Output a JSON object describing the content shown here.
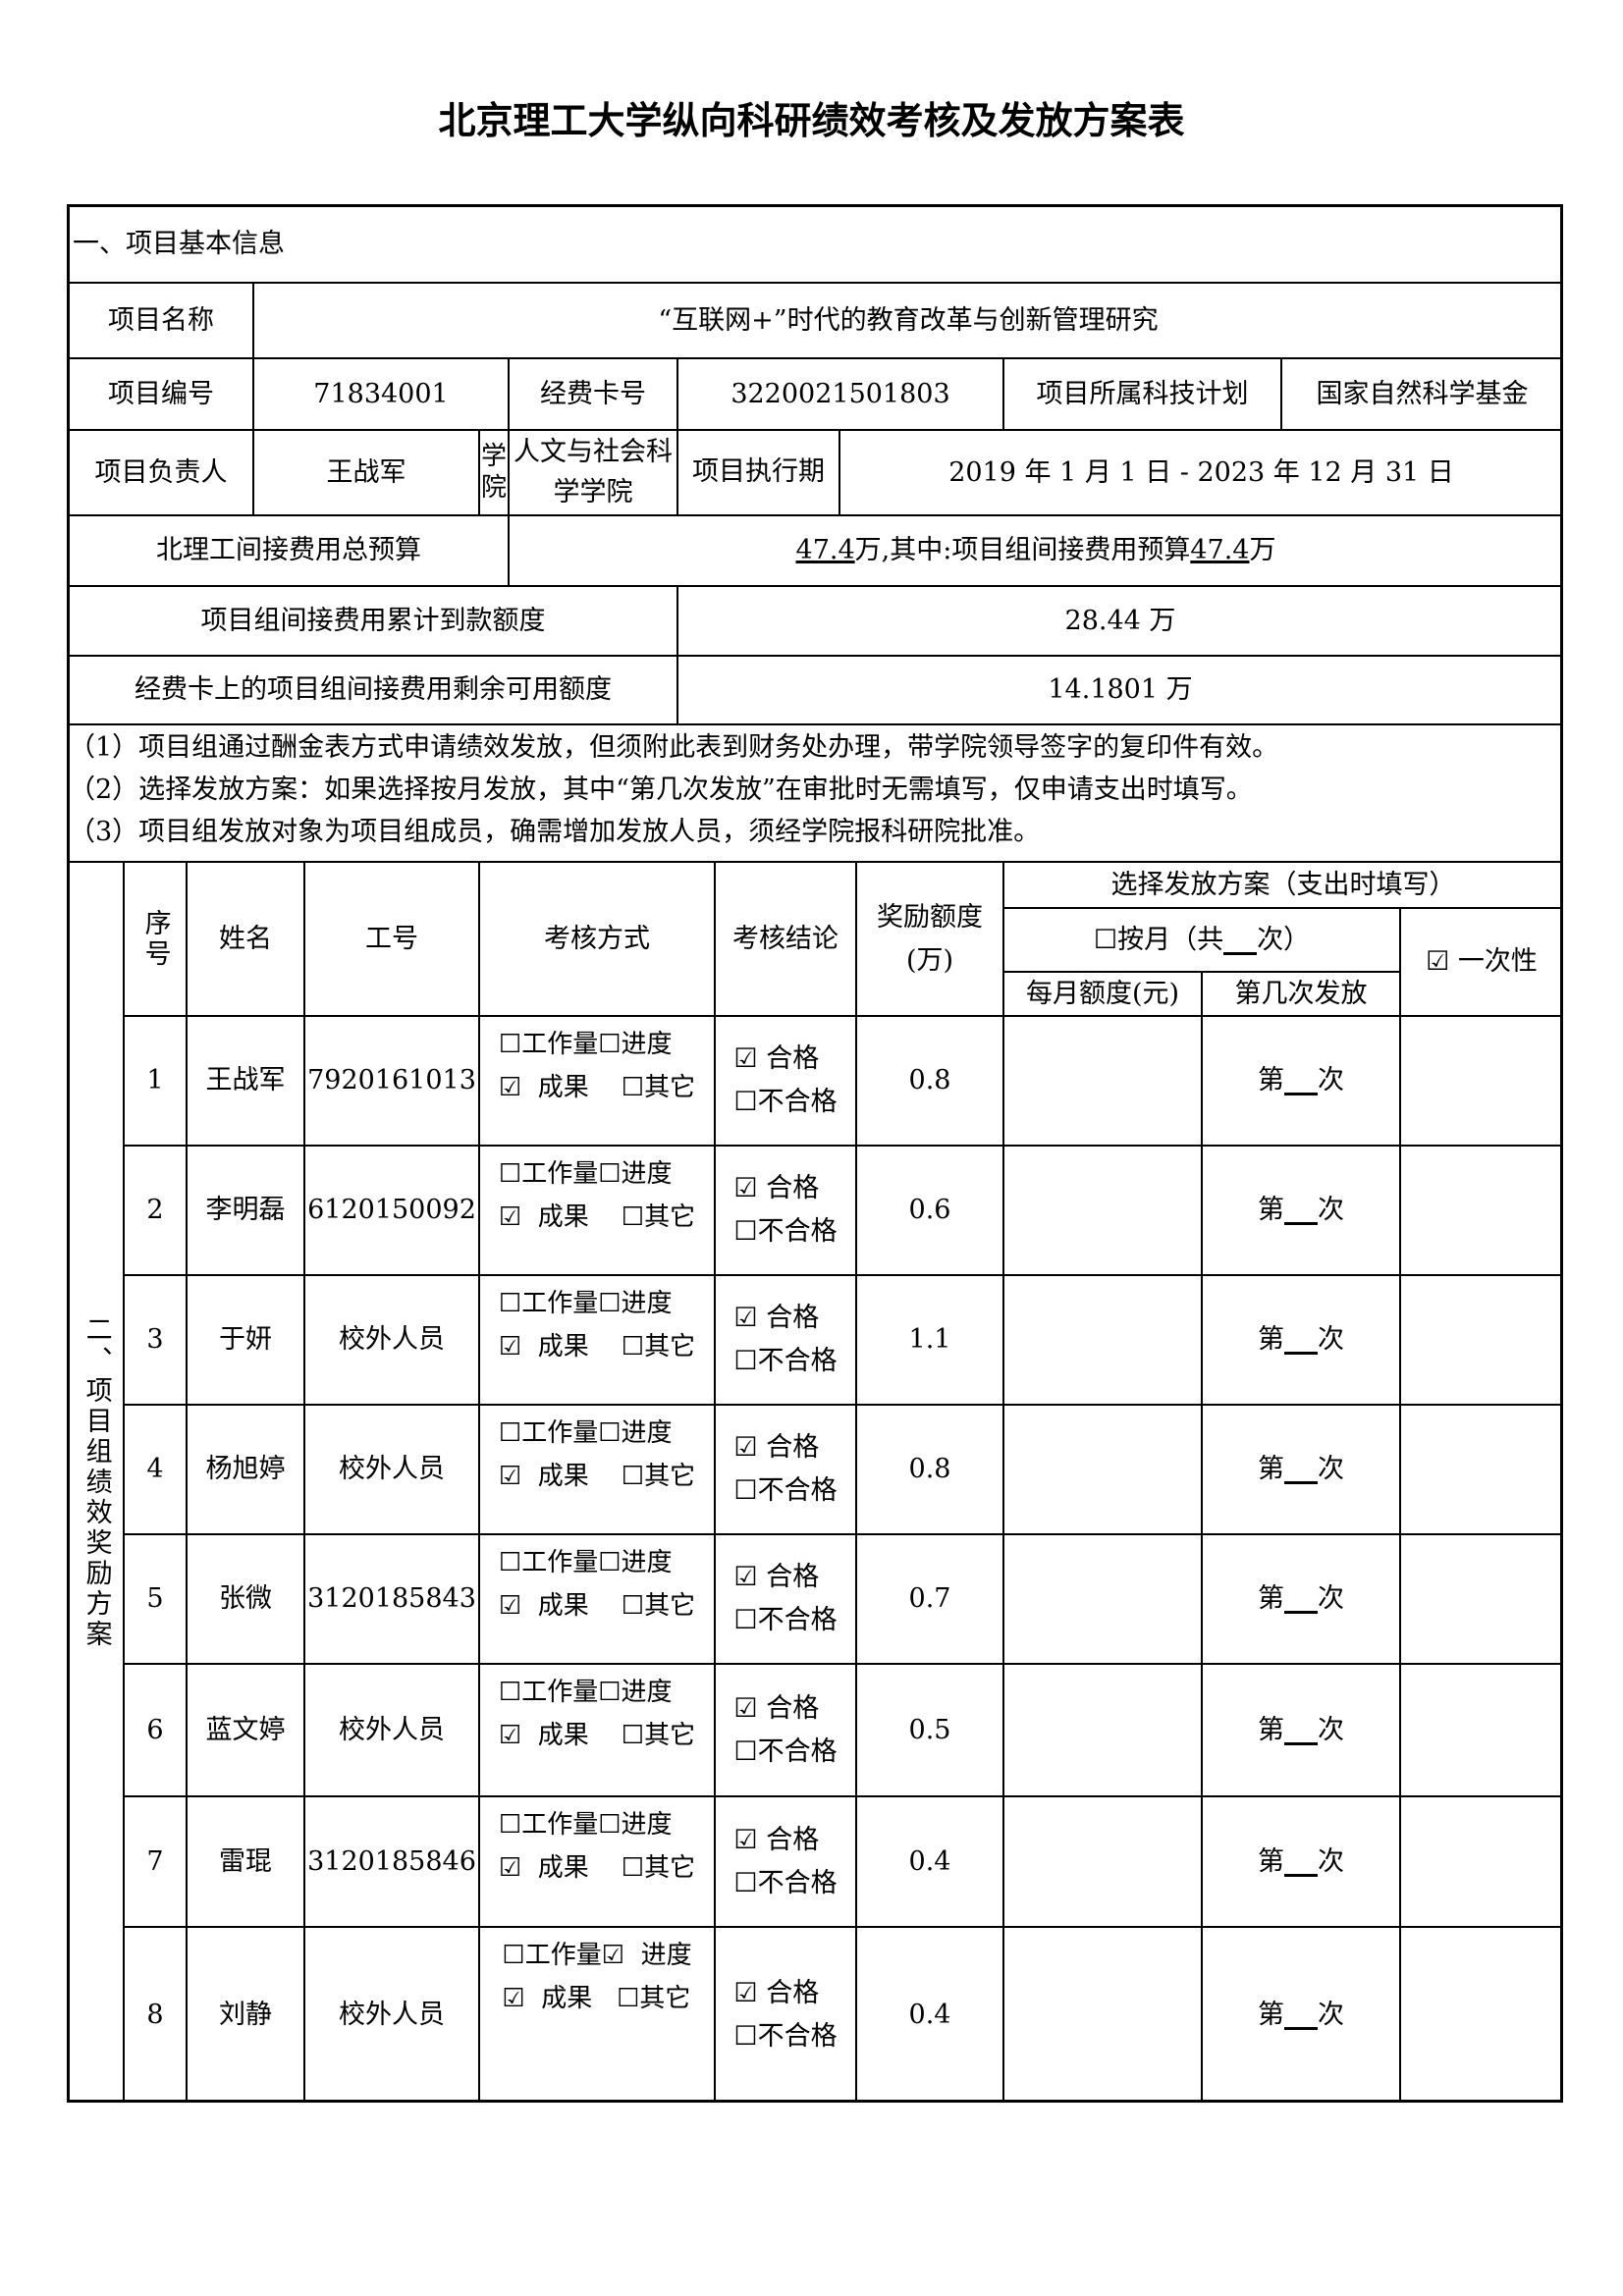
{
  "title": "北京理工大学纵向科研绩效考核及发放方案表",
  "section1": {
    "heading": "一、项目基本信息",
    "project_name_label": "项目名称",
    "project_name": "“互联网+”时代的教育改革与创新管理研究",
    "project_number_label": "项目编号",
    "project_number": "71834001",
    "fund_card_label": "经费卡号",
    "fund_card": "3220021501803",
    "plan_label": "项目所属科技计划",
    "plan": "国家自然科学基金",
    "leader_label": "项目负责人",
    "leader": "王战军",
    "school_label": "学院",
    "school": "人文与社会科学学院",
    "period_label": "项目执行期",
    "period": "2019 年 1 月 1 日 - 2023 年 12 月 31 日",
    "total_budget_label": "北理工间接费用总预算",
    "total_budget_value": "47.4",
    "total_budget_mid": "万,其中:项目组间接费用预算",
    "group_budget_value": "47.4",
    "unit": "万",
    "received_label": "项目组间接费用累计到款额度",
    "received": "28.44 万",
    "remaining_label": "经费卡上的项目组间接费用剩余可用额度",
    "remaining": "14.1801 万"
  },
  "notes": [
    "（1）项目组通过酬金表方式申请绩效发放，但须附此表到财务处办理，带学院领导签字的复印件有效。",
    "（2）选择发放方案：如果选择按月发放，其中“第几次发放”在审批时无需填写，仅申请支出时填写。",
    "（3）项目组发放对象为项目组成员，确需增加发放人员，须经学院报科研院批准。"
  ],
  "section2": {
    "heading": "二、项目组绩效奖励方案",
    "headers": {
      "seq": "序号",
      "name": "姓名",
      "id": "工号",
      "method": "考核方式",
      "conclusion": "考核结论",
      "amount": "奖励额度(万)",
      "plan": "选择发放方案（支出时填写）",
      "monthly": "按月（共",
      "monthly_end": "次）",
      "monthly_amount": "每月额度(元)",
      "nth": "第几次发放",
      "onetime": "一次性",
      "onetime_checked": true,
      "monthly_checked": false
    },
    "labels": {
      "workload": "工作量",
      "progress": "进度",
      "result": "成果",
      "other": "其它",
      "pass": "合格",
      "fail": "不合格",
      "nth_prefix": "第",
      "nth_suffix": "次"
    },
    "rows": [
      {
        "seq": "1",
        "name": "王战军",
        "id": "7920161013",
        "workload": false,
        "progress": false,
        "result": true,
        "other": false,
        "pass": true,
        "amount": "0.8"
      },
      {
        "seq": "2",
        "name": "李明磊",
        "id": "6120150092",
        "workload": false,
        "progress": false,
        "result": true,
        "other": false,
        "pass": true,
        "amount": "0.6"
      },
      {
        "seq": "3",
        "name": "于妍",
        "id": "校外人员",
        "workload": false,
        "progress": false,
        "result": true,
        "other": false,
        "pass": true,
        "amount": "1.1"
      },
      {
        "seq": "4",
        "name": "杨旭婷",
        "id": "校外人员",
        "workload": false,
        "progress": false,
        "result": true,
        "other": false,
        "pass": true,
        "amount": "0.8"
      },
      {
        "seq": "5",
        "name": "张微",
        "id": "3120185843",
        "workload": false,
        "progress": false,
        "result": true,
        "other": false,
        "pass": true,
        "amount": "0.7"
      },
      {
        "seq": "6",
        "name": "蓝文婷",
        "id": "校外人员",
        "workload": false,
        "progress": false,
        "result": true,
        "other": false,
        "pass": true,
        "amount": "0.5"
      },
      {
        "seq": "7",
        "name": "雷琨",
        "id": "3120185846",
        "workload": false,
        "progress": false,
        "result": true,
        "other": false,
        "pass": true,
        "amount": "0.4"
      },
      {
        "seq": "8",
        "name": "刘静",
        "id": "校外人员",
        "workload": false,
        "progress": true,
        "result": true,
        "other": false,
        "pass": true,
        "amount": "0.4"
      }
    ]
  }
}
